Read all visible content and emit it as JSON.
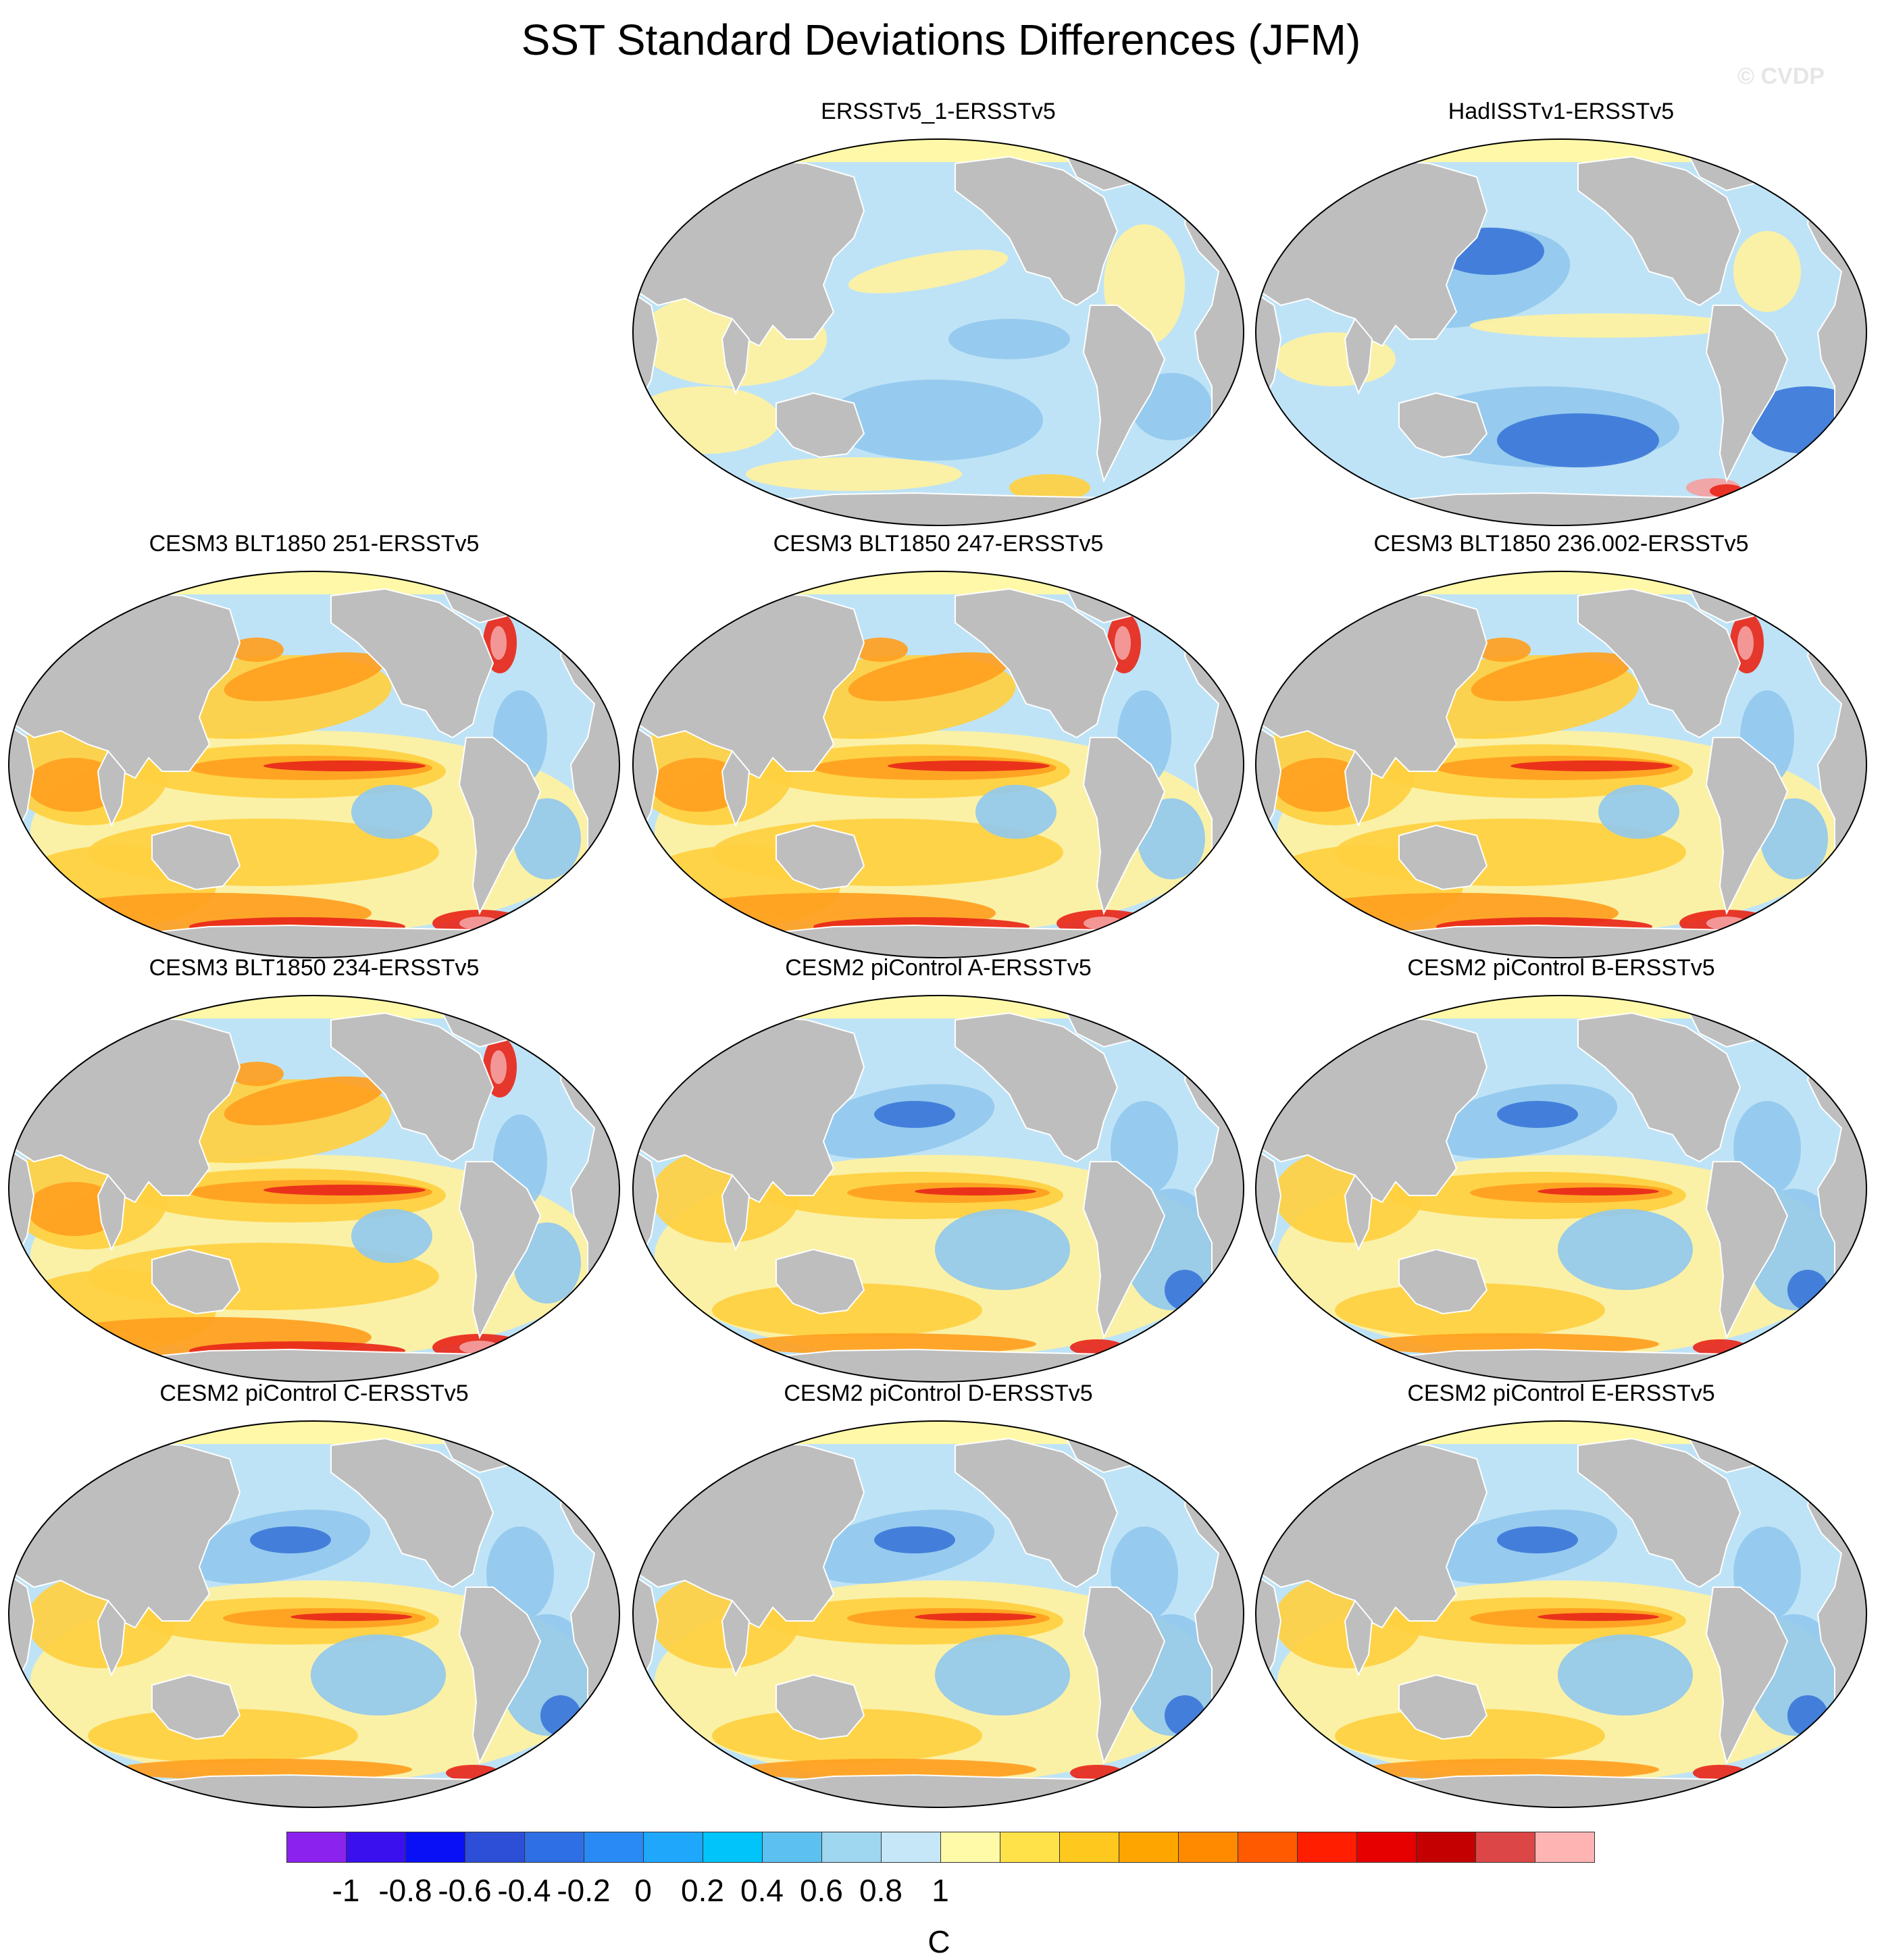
{
  "title": "SST Standard Deviations Differences (JFM)",
  "watermark": "© CVDP",
  "panels": [
    {
      "title": "ERSSTv5_1-ERSSTv5",
      "style": "weak-mixed"
    },
    {
      "title": "HadISSTv1-ERSSTv5",
      "style": "blue"
    },
    {
      "title": "CESM3 BLT1850 251-ERSSTv5",
      "style": "strong-warm"
    },
    {
      "title": "CESM3 BLT1850 247-ERSSTv5",
      "style": "strong-warm"
    },
    {
      "title": "CESM3 BLT1850 236.002-ERSSTv5",
      "style": "strong-warm"
    },
    {
      "title": "CESM3 BLT1850 234-ERSSTv5",
      "style": "strong-warm"
    },
    {
      "title": "CESM2 piControl A-ERSSTv5",
      "style": "mixed"
    },
    {
      "title": "CESM2 piControl B-ERSSTv5",
      "style": "mixed"
    },
    {
      "title": "CESM2 piControl C-ERSSTv5",
      "style": "mixed"
    },
    {
      "title": "CESM2 piControl D-ERSSTv5",
      "style": "mixed"
    },
    {
      "title": "CESM2 piControl E-ERSSTv5",
      "style": "mixed"
    }
  ],
  "colorbar": {
    "unit": "C",
    "ticks": [
      "-1",
      "-0.8",
      "-0.6",
      "-0.4",
      "-0.2",
      "0",
      "0.2",
      "0.4",
      "0.6",
      "0.8",
      "1"
    ],
    "colors": [
      "#8b22ee",
      "#3a10ee",
      "#0a10f5",
      "#2d4fd8",
      "#2f6fe6",
      "#2a8af5",
      "#1ea7fb",
      "#00c4fa",
      "#5cc1f0",
      "#9fd6f0",
      "#c6e7f8",
      "#fffaa8",
      "#ffe24a",
      "#ffc81e",
      "#ffa500",
      "#ff8a00",
      "#ff5a00",
      "#ff1e00",
      "#e60000",
      "#c40000",
      "#dc4646",
      "#ffb4b4"
    ]
  },
  "palette": {
    "land": "#bebebe",
    "sea_ice": "#fff8a8",
    "light_blue": "#bfe3f6",
    "mid_blue": "#93c9ee",
    "deep_blue": "#3c78d8",
    "yellow": "#fff2a0",
    "gold": "#ffd040",
    "orange": "#ffa020",
    "red": "#e8281a",
    "pink": "#f4a0a0"
  }
}
